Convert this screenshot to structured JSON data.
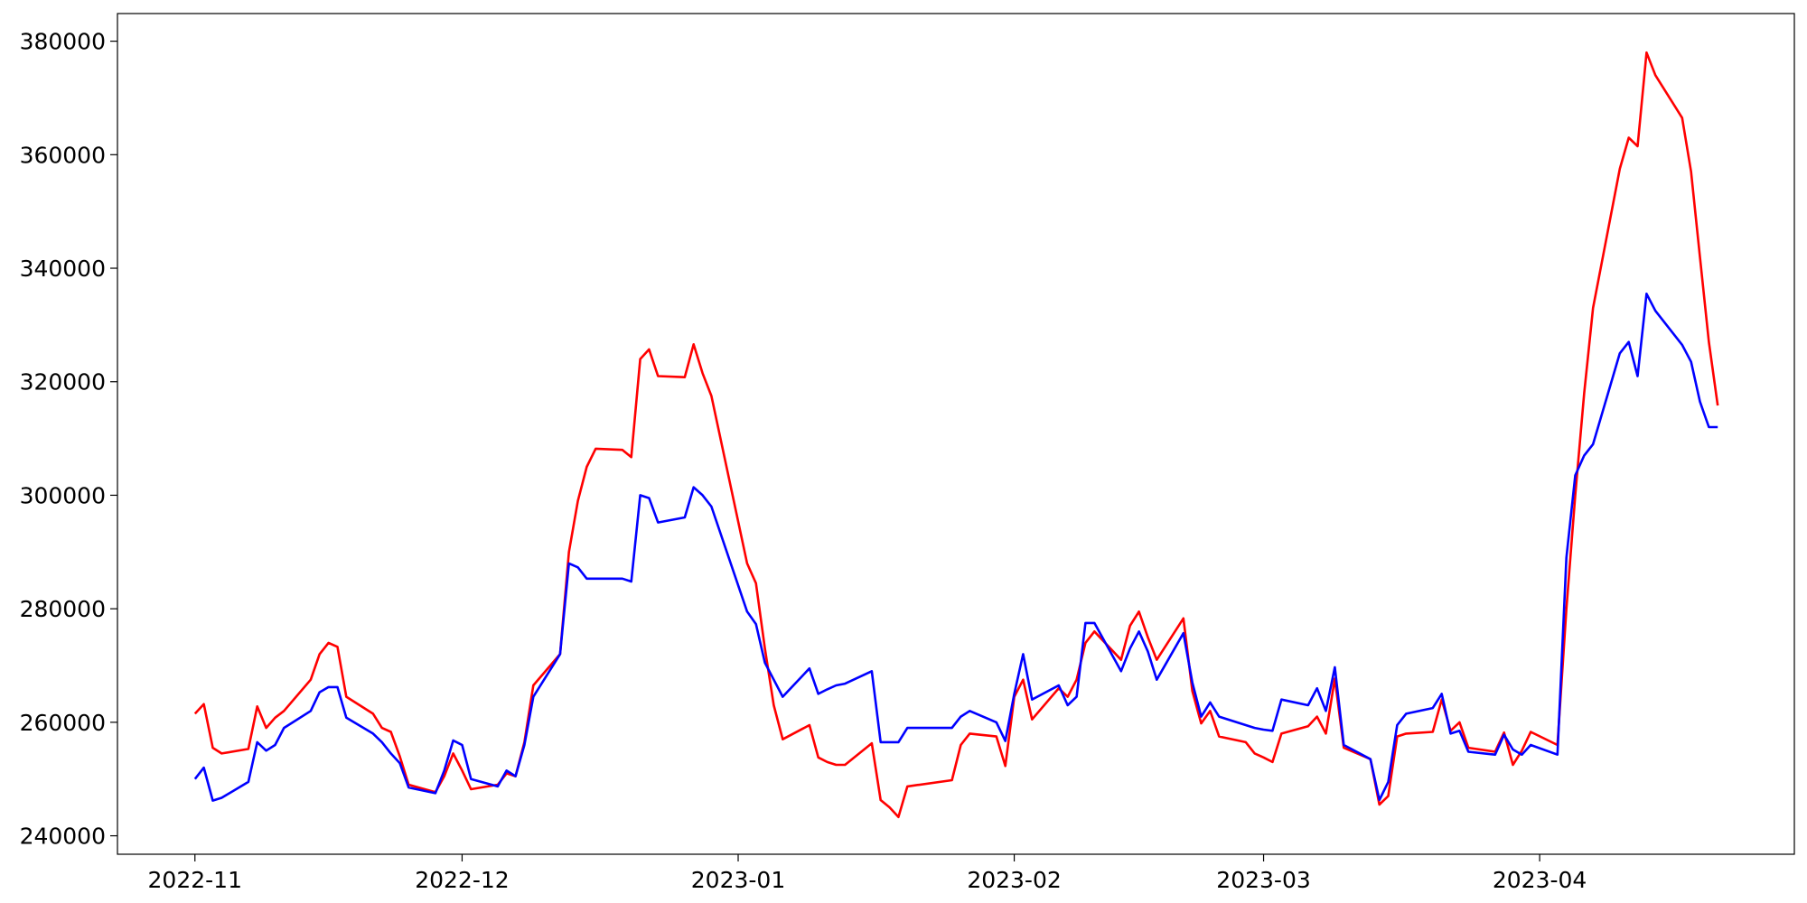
{
  "chart_data": {
    "type": "line",
    "x": [
      0,
      1,
      2,
      3,
      6,
      7,
      8,
      9,
      10,
      13,
      14,
      15,
      16,
      17,
      20,
      21,
      22,
      23,
      24,
      27,
      28,
      29,
      30,
      31,
      34,
      35,
      36,
      37,
      38,
      41,
      42,
      43,
      44,
      45,
      48,
      49,
      50,
      51,
      52,
      55,
      56,
      57,
      58,
      62,
      63,
      64,
      65,
      66,
      69,
      70,
      71,
      72,
      73,
      76,
      77,
      78,
      79,
      80,
      85,
      86,
      87,
      90,
      91,
      92,
      93,
      94,
      97,
      98,
      99,
      100,
      101,
      104,
      105,
      106,
      107,
      108,
      111,
      112,
      113,
      114,
      115,
      118,
      119,
      120,
      121,
      122,
      125,
      126,
      127,
      128,
      129,
      132,
      133,
      134,
      135,
      136,
      139,
      140,
      141,
      142,
      143,
      146,
      147,
      148,
      149,
      150,
      153,
      154,
      155,
      156,
      157,
      160,
      161,
      162,
      163,
      164,
      167,
      168,
      169,
      170,
      171
    ],
    "series": [
      {
        "color": "#ff0000",
        "values": [
          261500,
          263200,
          255500,
          254500,
          255300,
          262800,
          259000,
          260800,
          262000,
          267500,
          272000,
          274000,
          273300,
          264500,
          261500,
          259000,
          258300,
          254000,
          249000,
          247700,
          250500,
          254500,
          251500,
          248200,
          249000,
          251000,
          250500,
          256500,
          266500,
          272000,
          290000,
          299000,
          305000,
          308200,
          308000,
          306700,
          324000,
          325700,
          321000,
          320800,
          326600,
          321500,
          317500,
          288000,
          284500,
          273000,
          263000,
          257000,
          259500,
          253800,
          253000,
          252500,
          252500,
          256300,
          246300,
          245000,
          243300,
          248700,
          249800,
          256000,
          258000,
          257500,
          252300,
          264500,
          267500,
          260500,
          266000,
          264500,
          267500,
          274000,
          276000,
          271000,
          277000,
          279500,
          275000,
          271000,
          278300,
          265500,
          259800,
          262000,
          257500,
          256500,
          254500,
          253800,
          253000,
          258000,
          259300,
          261000,
          258000,
          267700,
          255500,
          253500,
          245500,
          247000,
          257500,
          258000,
          258300,
          264000,
          258500,
          260000,
          255500,
          254800,
          258200,
          252500,
          255000,
          258300,
          256000,
          280000,
          300000,
          318000,
          333000,
          357500,
          363000,
          361500,
          378000,
          374000,
          366500,
          357000,
          342000,
          327000,
          315800
        ]
      },
      {
        "color": "#0000ff",
        "values": [
          250000,
          252000,
          246200,
          246700,
          249500,
          256500,
          255000,
          256000,
          259000,
          262000,
          265300,
          266200,
          266200,
          260800,
          258000,
          256500,
          254500,
          252800,
          248500,
          247500,
          251500,
          256800,
          256000,
          250000,
          248700,
          251500,
          250500,
          256000,
          264500,
          272000,
          288000,
          287300,
          285300,
          285300,
          285300,
          284800,
          300000,
          299500,
          295200,
          296100,
          301400,
          300000,
          298000,
          279500,
          277300,
          270500,
          267500,
          264500,
          269500,
          265000,
          265800,
          266500,
          266800,
          269000,
          256500,
          256500,
          256500,
          259000,
          259000,
          261000,
          262000,
          260000,
          256700,
          265000,
          272000,
          264000,
          266500,
          263000,
          264500,
          277500,
          277500,
          269000,
          273000,
          276000,
          272500,
          267500,
          275700,
          267000,
          261000,
          263500,
          261000,
          259500,
          259000,
          258700,
          258500,
          264000,
          263000,
          266000,
          262000,
          269700,
          256000,
          253500,
          246300,
          249500,
          259500,
          261500,
          262500,
          265000,
          258000,
          258500,
          254800,
          254300,
          257800,
          255200,
          254300,
          256000,
          254300,
          289000,
          303500,
          307000,
          309000,
          325000,
          327000,
          321000,
          335500,
          332500,
          326500,
          323500,
          316500,
          312000,
          312000
        ]
      }
    ],
    "xlim": [
      -8.7,
      179.6
    ],
    "xticks": [
      {
        "value": 0,
        "label": "2022-11"
      },
      {
        "value": 30,
        "label": "2022-12"
      },
      {
        "value": 61,
        "label": "2023-01"
      },
      {
        "value": 92,
        "label": "2023-02"
      },
      {
        "value": 120,
        "label": "2023-03"
      },
      {
        "value": 151,
        "label": "2023-04"
      }
    ],
    "ylim": [
      236750,
      384870
    ],
    "yticks": [
      240000,
      260000,
      280000,
      300000,
      320000,
      340000,
      360000,
      380000
    ],
    "grid": false
  }
}
